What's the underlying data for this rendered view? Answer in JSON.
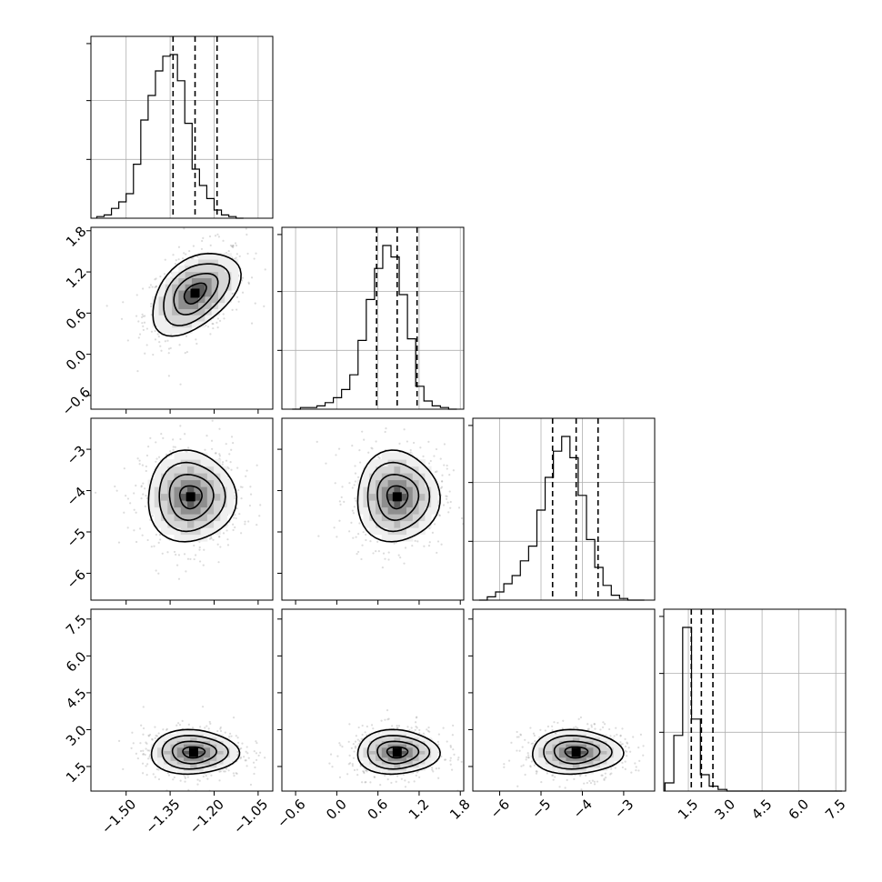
{
  "chart_data": {
    "type": "corner",
    "grid": true,
    "params": [
      {
        "index": 0,
        "lim": [
          -1.62,
          -1.0
        ],
        "ticks": [
          "−1.50",
          "−1.35",
          "−1.20",
          "−1.05"
        ],
        "tick_values": [
          -1.5,
          -1.35,
          -1.2,
          -1.05
        ],
        "mean": -1.27,
        "sd": 0.075,
        "quantiles": [
          -1.34,
          -1.265,
          -1.19
        ]
      },
      {
        "index": 1,
        "lim": [
          -0.8,
          1.85
        ],
        "ticks": [
          "−0.6",
          "0.0",
          "0.6",
          "1.2",
          "1.8"
        ],
        "tick_values": [
          -0.6,
          0.0,
          0.6,
          1.2,
          1.8
        ],
        "mean": 0.88,
        "sd": 0.3,
        "quantiles": [
          0.58,
          0.88,
          1.17
        ]
      },
      {
        "index": 2,
        "lim": [
          -6.65,
          -2.25
        ],
        "ticks": [
          "−6",
          "−5",
          "−4",
          "−3"
        ],
        "tick_values": [
          -6,
          -5,
          -4,
          -3
        ],
        "mean": -4.15,
        "sd": 0.55,
        "quantiles": [
          -4.72,
          -4.15,
          -3.62
        ]
      },
      {
        "index": 3,
        "lim": [
          0.5,
          7.9
        ],
        "ticks": [
          "1.5",
          "3.0",
          "4.5",
          "6.0",
          "7.5"
        ],
        "tick_values": [
          1.5,
          3.0,
          4.5,
          6.0,
          7.5
        ],
        "mean": 2.05,
        "sd": 0.45,
        "quantiles": [
          1.62,
          2.03,
          2.5
        ]
      }
    ],
    "histograms": [
      {
        "param": 0,
        "bin_start": -1.6,
        "bin_width": 0.025,
        "counts": [
          1,
          2,
          6,
          10,
          15,
          33,
          60,
          75,
          90,
          99,
          100,
          84,
          58,
          30,
          20,
          12,
          5,
          2,
          1,
          0
        ]
      },
      {
        "param": 1,
        "bin_start": -0.65,
        "bin_width": 0.12,
        "counts": [
          0,
          1,
          1,
          2,
          4,
          7,
          12,
          21,
          42,
          67,
          86,
          100,
          93,
          70,
          43,
          14,
          5,
          2,
          1,
          0
        ]
      },
      {
        "param": 2,
        "bin_start": -6.5,
        "bin_width": 0.2,
        "counts": [
          0,
          2,
          5,
          10,
          15,
          24,
          33,
          55,
          75,
          91,
          100,
          87,
          64,
          37,
          20,
          9,
          3,
          1,
          0,
          0
        ]
      },
      {
        "param": 3,
        "bin_start": 0.55,
        "bin_width": 0.36,
        "counts": [
          5,
          34,
          100,
          44,
          10,
          3,
          1,
          0,
          0,
          0,
          0,
          0,
          0,
          0,
          0,
          0,
          0,
          0,
          0,
          0
        ]
      }
    ],
    "joint_panels": [
      {
        "x": 0,
        "y": 1,
        "correlation": 0.45,
        "mode": [
          -1.265,
          0.89
        ]
      },
      {
        "x": 0,
        "y": 2,
        "correlation": 0.0,
        "mode": [
          -1.28,
          -4.15
        ]
      },
      {
        "x": 1,
        "y": 2,
        "correlation": 0.0,
        "mode": [
          0.88,
          -4.15
        ]
      },
      {
        "x": 0,
        "y": 3,
        "correlation": 0.0,
        "mode": [
          -1.27,
          2.08
        ]
      },
      {
        "x": 1,
        "y": 3,
        "correlation": 0.0,
        "mode": [
          0.88,
          2.08
        ]
      },
      {
        "x": 2,
        "y": 3,
        "correlation": 0.0,
        "mode": [
          -4.15,
          2.08
        ]
      }
    ],
    "contour_levels_sigma": [
      0.5,
      1.0,
      1.5,
      2.0
    ]
  }
}
